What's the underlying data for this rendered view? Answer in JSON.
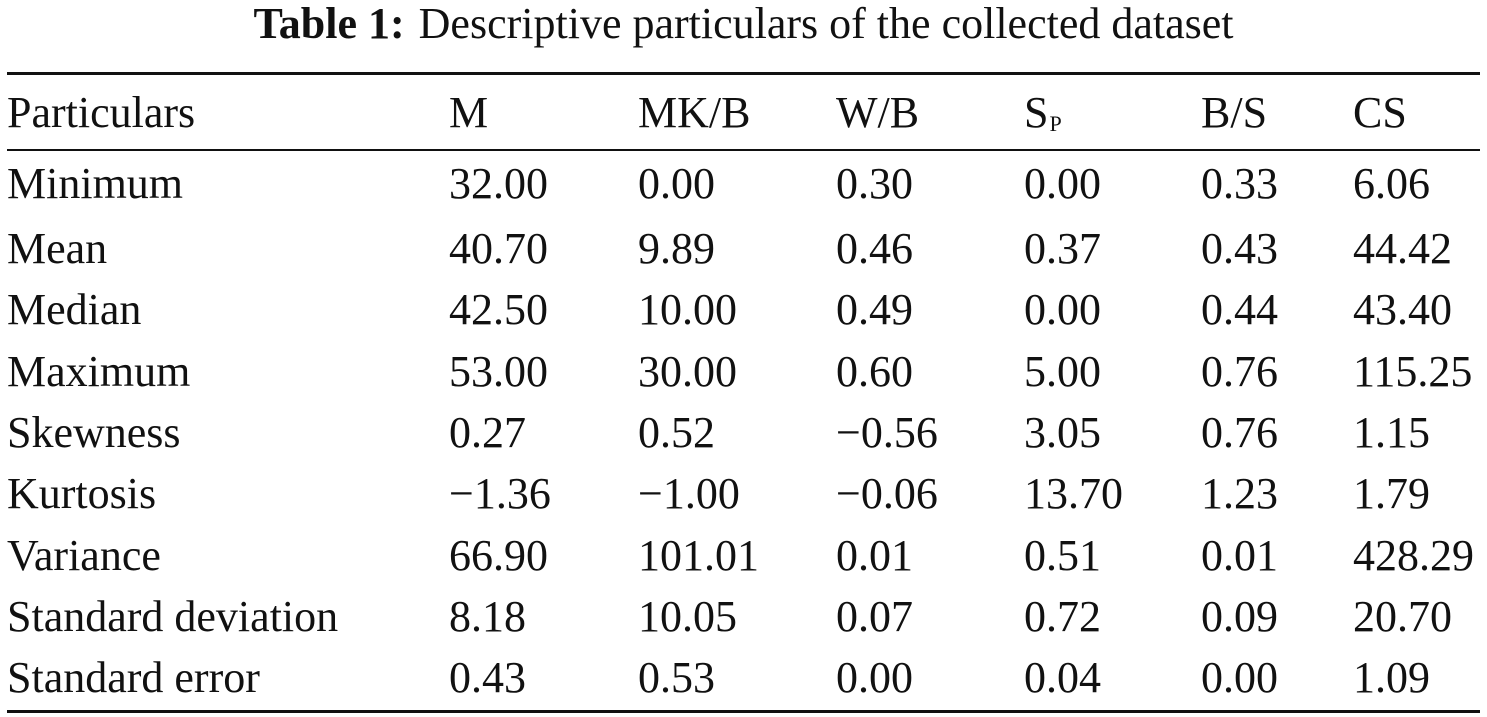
{
  "caption": {
    "label": "Table 1:",
    "text": "Descriptive particulars of the collected dataset"
  },
  "table": {
    "headers": [
      {
        "main": "Particulars",
        "sub": ""
      },
      {
        "main": "M",
        "sub": ""
      },
      {
        "main": "MK/B",
        "sub": ""
      },
      {
        "main": "W/B",
        "sub": ""
      },
      {
        "main": "S",
        "sub": "P"
      },
      {
        "main": "B/S",
        "sub": ""
      },
      {
        "main": "CS",
        "sub": ""
      }
    ],
    "rows": [
      [
        "Minimum",
        "32.00",
        "0.00",
        "0.30",
        "0.00",
        "0.33",
        "6.06"
      ],
      [
        "Mean",
        "40.70",
        "9.89",
        "0.46",
        "0.37",
        "0.43",
        "44.42"
      ],
      [
        "Median",
        "42.50",
        "10.00",
        "0.49",
        "0.00",
        "0.44",
        "43.40"
      ],
      [
        "Maximum",
        "53.00",
        "30.00",
        "0.60",
        "5.00",
        "0.76",
        "115.25"
      ],
      [
        "Skewness",
        "0.27",
        "0.52",
        "−0.56",
        "3.05",
        "0.76",
        "1.15"
      ],
      [
        "Kurtosis",
        "−1.36",
        "−1.00",
        "−0.06",
        "13.70",
        "1.23",
        "1.79"
      ],
      [
        "Variance",
        "66.90",
        "101.01",
        "0.01",
        "0.51",
        "0.01",
        "428.29"
      ],
      [
        "Standard deviation",
        "8.18",
        "10.05",
        "0.07",
        "0.72",
        "0.09",
        "20.70"
      ],
      [
        "Standard error",
        "0.43",
        "0.53",
        "0.00",
        "0.04",
        "0.00",
        "1.09"
      ]
    ]
  }
}
